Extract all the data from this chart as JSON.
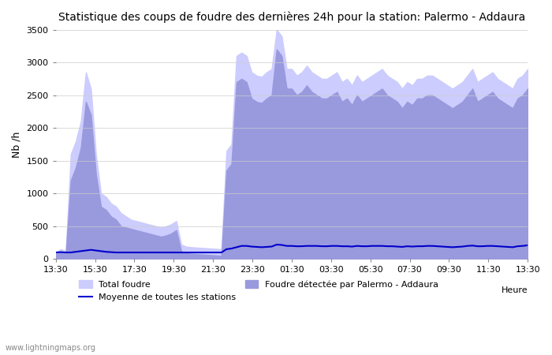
{
  "title": "Statistique des coups de foudre des dernières 24h pour la station: Palermo - Addaura",
  "ylabel": "Nb /h",
  "xlabel": "Heure",
  "watermark": "www.lightningmaps.org",
  "ylim": [
    0,
    3500
  ],
  "x_labels": [
    "13:30",
    "15:30",
    "17:30",
    "19:30",
    "21:30",
    "23:30",
    "01:30",
    "03:30",
    "05:30",
    "07:30",
    "09:30",
    "11:30",
    "13:30"
  ],
  "total_foudre_color": "#ccccff",
  "palermo_color": "#9999dd",
  "moyenne_color": "#0000cc",
  "background_color": "#ffffff",
  "grid_color": "#cccccc",
  "total_foudre": [
    100,
    150,
    120,
    1600,
    1800,
    2100,
    2850,
    2600,
    1600,
    1000,
    950,
    850,
    800,
    700,
    650,
    600,
    580,
    560,
    540,
    520,
    500,
    480,
    500,
    530,
    580,
    220,
    190,
    180,
    175,
    170,
    165,
    160,
    155,
    150,
    1650,
    1750,
    3100,
    3150,
    3100,
    2850,
    2800,
    2780,
    2850,
    2900,
    3500,
    3400,
    2900,
    2900,
    2800,
    2850,
    2950,
    2850,
    2800,
    2750,
    2750,
    2800,
    2850,
    2700,
    2750,
    2650,
    2800,
    2700,
    2750,
    2800,
    2850,
    2900,
    2800,
    2750,
    2700,
    2600,
    2700,
    2650,
    2750,
    2750,
    2800,
    2800,
    2750,
    2700,
    2650,
    2600,
    2650,
    2700,
    2800,
    2900,
    2700,
    2750,
    2800,
    2850,
    2750,
    2700,
    2650,
    2600,
    2750,
    2800,
    2900
  ],
  "palermo_foudre": [
    80,
    100,
    90,
    1200,
    1400,
    1700,
    2400,
    2200,
    1300,
    800,
    750,
    650,
    600,
    500,
    480,
    460,
    440,
    420,
    400,
    380,
    360,
    340,
    360,
    390,
    440,
    120,
    90,
    80,
    75,
    70,
    65,
    60,
    55,
    50,
    1350,
    1450,
    2700,
    2750,
    2700,
    2450,
    2400,
    2380,
    2450,
    2500,
    3200,
    3100,
    2600,
    2600,
    2500,
    2550,
    2650,
    2550,
    2500,
    2450,
    2450,
    2500,
    2550,
    2400,
    2450,
    2350,
    2500,
    2400,
    2450,
    2500,
    2550,
    2600,
    2500,
    2450,
    2400,
    2300,
    2400,
    2350,
    2450,
    2450,
    2500,
    2500,
    2450,
    2400,
    2350,
    2300,
    2350,
    2400,
    2500,
    2600,
    2400,
    2450,
    2500,
    2550,
    2450,
    2400,
    2350,
    2300,
    2450,
    2500,
    2600
  ],
  "moyenne": [
    100,
    105,
    100,
    100,
    110,
    120,
    130,
    140,
    130,
    120,
    110,
    105,
    100,
    100,
    100,
    100,
    100,
    100,
    100,
    100,
    100,
    100,
    100,
    100,
    100,
    100,
    100,
    100,
    100,
    100,
    100,
    100,
    100,
    100,
    150,
    160,
    180,
    200,
    200,
    190,
    185,
    180,
    185,
    190,
    220,
    215,
    200,
    200,
    195,
    195,
    200,
    200,
    200,
    195,
    195,
    200,
    200,
    195,
    195,
    190,
    200,
    195,
    195,
    200,
    200,
    200,
    195,
    195,
    190,
    185,
    195,
    190,
    195,
    195,
    200,
    200,
    195,
    190,
    185,
    180,
    185,
    190,
    200,
    205,
    195,
    195,
    200,
    200,
    195,
    190,
    185,
    180,
    195,
    200,
    210
  ]
}
